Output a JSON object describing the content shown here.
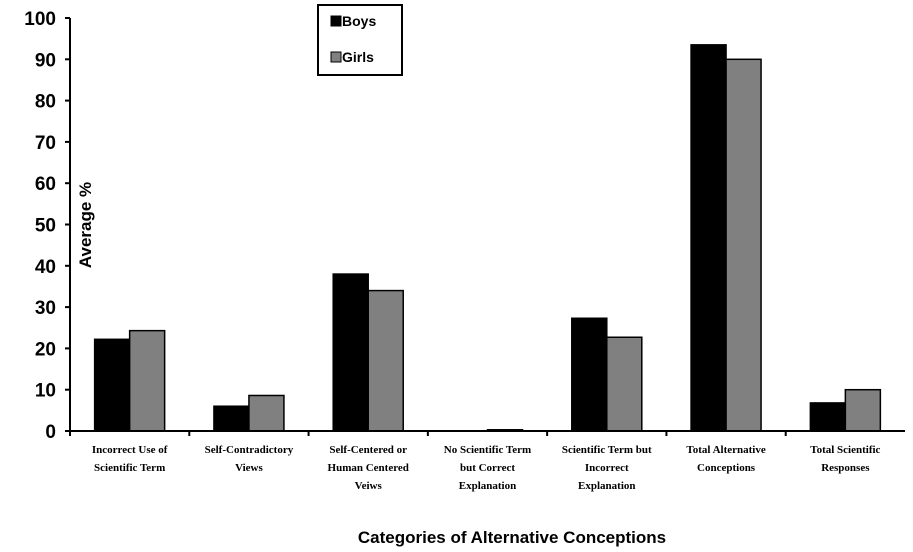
{
  "chart_data": {
    "type": "bar",
    "title": "",
    "xlabel": "Categories of Alternative Conceptions",
    "ylabel": "Average %",
    "ylim": [
      0,
      100
    ],
    "yticks": [
      0,
      10,
      20,
      30,
      40,
      50,
      60,
      70,
      80,
      90,
      100
    ],
    "grid": false,
    "legend_position": "top-center",
    "categories": [
      [
        "Incorrect Use of",
        "Scientific Term"
      ],
      [
        "Self-Contradictory",
        "Views"
      ],
      [
        "Self-Centered or",
        "Human Centered",
        "Veiws"
      ],
      [
        "No Scientific Term",
        "but Correct",
        "Explanation"
      ],
      [
        "Scientific Term but",
        "Incorrect",
        "Explanation"
      ],
      [
        "Total Alternative",
        "Conceptions"
      ],
      [
        "Total Scientific",
        "Responses"
      ]
    ],
    "series": [
      {
        "name": "Boys",
        "color": "#000000",
        "values": [
          22.2,
          6,
          38,
          0,
          27.3,
          93.5,
          6.8
        ]
      },
      {
        "name": "Girls",
        "color": "#808080",
        "values": [
          24.3,
          8.6,
          34,
          0.3,
          22.7,
          90,
          10
        ]
      }
    ]
  }
}
